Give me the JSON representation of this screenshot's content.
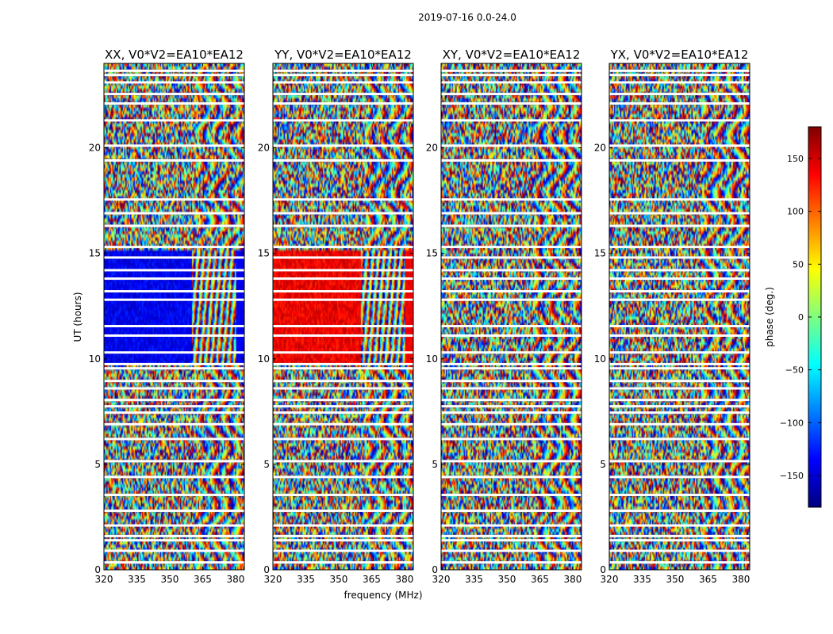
{
  "chart_data": {
    "type": "heatmap",
    "suptitle": "2019-07-16 0.0-24.0",
    "xlabel": "frequency (MHz)",
    "ylabel": "UT (hours)",
    "xlim": [
      320,
      384
    ],
    "ylim": [
      0,
      24
    ],
    "xticks": [
      320,
      335,
      350,
      365,
      380
    ],
    "yticks": [
      0,
      5,
      10,
      15,
      20
    ],
    "colorbar": {
      "label": "phase (deg.)",
      "range": [
        -180,
        180
      ],
      "ticks": [
        -150,
        -100,
        -50,
        0,
        50,
        100,
        150
      ],
      "tick_labels": [
        "−150",
        "−100",
        "−50",
        "0",
        "50",
        "100",
        "150"
      ],
      "colormap": "jet",
      "colormap_stops": [
        "#00007f",
        "#0000ff",
        "#007fff",
        "#00ffff",
        "#7fff7f",
        "#ffff00",
        "#ff7f00",
        "#ff0000",
        "#7f0000"
      ]
    },
    "panels": [
      {
        "title": "XX, V0*V2=EA10*EA12",
        "coherent_phase_deg": -140,
        "coherent_window_ut": [
          9.8,
          15.2
        ],
        "coherent_freq_mhz": [
          320,
          360
        ]
      },
      {
        "title": "YY, V0*V2=EA10*EA12",
        "coherent_phase_deg": 140,
        "coherent_window_ut": [
          9.8,
          15.2
        ],
        "coherent_freq_mhz": [
          320,
          360
        ]
      },
      {
        "title": "XY, V0*V2=EA10*EA12",
        "coherent_phase_deg": null,
        "coherent_window_ut": null,
        "coherent_freq_mhz": null
      },
      {
        "title": "YX, V0*V2=EA10*EA12",
        "coherent_phase_deg": null,
        "coherent_window_ut": null,
        "coherent_freq_mhz": null
      }
    ],
    "flagged_ut_hours": [
      0.35,
      0.9,
      1.4,
      1.6,
      2.1,
      2.8,
      3.55,
      4.4,
      5.15,
      6.2,
      6.9,
      7.45,
      7.75,
      8.05,
      8.6,
      8.95,
      9.55,
      9.75,
      10.3,
      11.1,
      11.55,
      12.8,
      13.2,
      13.8,
      14.2,
      14.8,
      15.3,
      16.3,
      16.9,
      17.55,
      19.4,
      20.1,
      21.3,
      22.1,
      22.55,
      23.1,
      23.45,
      23.65
    ]
  }
}
